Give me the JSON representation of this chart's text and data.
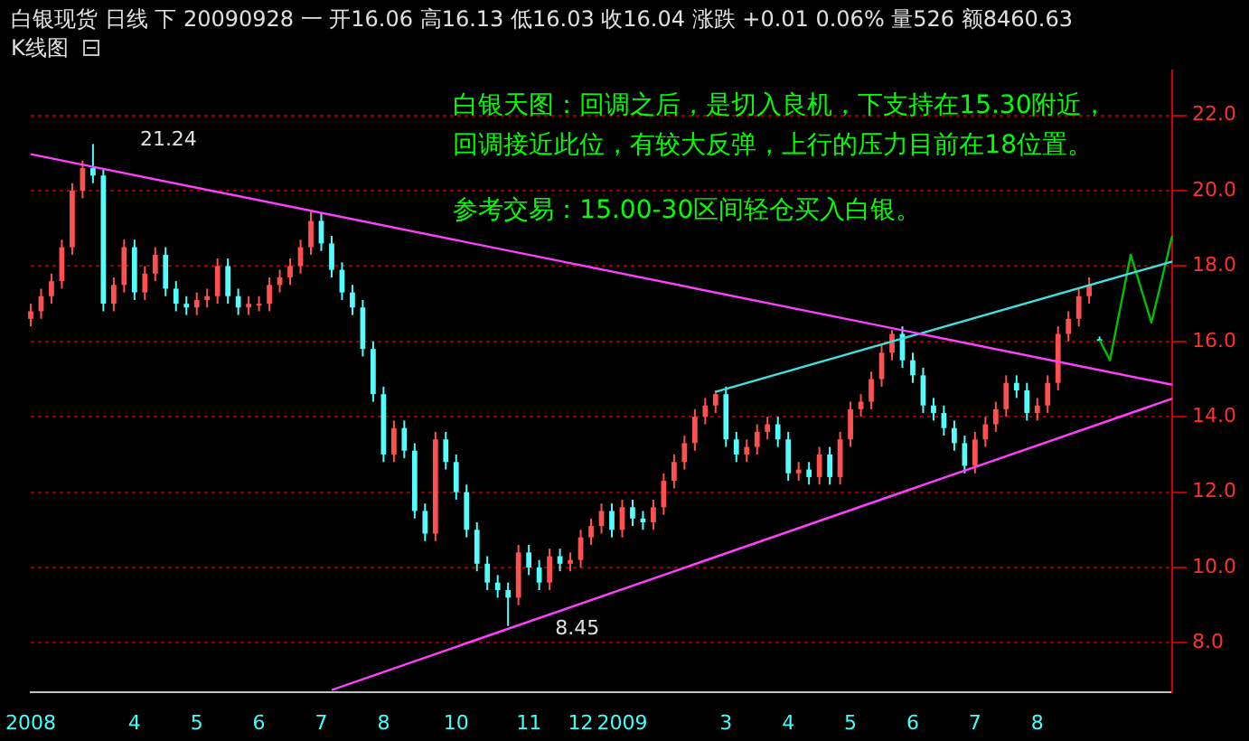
{
  "chart_data": {
    "type": "candlestick",
    "title": "白银现货 日线 下 20090928 一 开16.06 高16.13 低16.03 收16.04 涨跌 +0.01 0.06% 量526 额8460.63",
    "subtitle": "K线图",
    "annotations": [
      "白银天图：回调之后，是切入良机，下支持在15.30附近，",
      "回调接近此位，有较大反弹，上行的压力目前在18位置。",
      "参考交易：15.00-30区间轻仓买入白银。",
      "21.24",
      "8.45"
    ],
    "categories": [
      "2008",
      null,
      null,
      null,
      null,
      null,
      null,
      null,
      null,
      null,
      "4",
      null,
      null,
      null,
      null,
      null,
      "5",
      null,
      null,
      null,
      null,
      null,
      "6",
      null,
      null,
      null,
      null,
      null,
      "7",
      null,
      null,
      null,
      null,
      null,
      "8",
      null,
      null,
      null,
      null,
      null,
      null,
      "10",
      null,
      null,
      null,
      null,
      null,
      null,
      "11",
      null,
      null,
      null,
      null,
      "12",
      null,
      null,
      null,
      "2009",
      null,
      null,
      null,
      null,
      null,
      null,
      null,
      null,
      null,
      "3",
      null,
      null,
      null,
      null,
      null,
      "4",
      null,
      null,
      null,
      null,
      null,
      "5",
      null,
      null,
      null,
      null,
      null,
      "6",
      null,
      null,
      null,
      null,
      null,
      "7",
      null,
      null,
      null,
      null,
      null,
      "8",
      null,
      null,
      null,
      null,
      null,
      null,
      null,
      null,
      null,
      null,
      null,
      null,
      null
    ],
    "ohlc": [
      [
        16.6,
        17.0,
        16.4,
        16.8
      ],
      [
        16.8,
        17.4,
        16.6,
        17.2
      ],
      [
        17.2,
        17.8,
        17.0,
        17.6
      ],
      [
        17.6,
        18.7,
        17.4,
        18.5
      ],
      [
        18.5,
        20.2,
        18.3,
        20.0
      ],
      [
        20.0,
        20.8,
        19.8,
        20.6
      ],
      [
        20.6,
        21.24,
        20.2,
        20.4
      ],
      [
        20.4,
        20.6,
        16.8,
        17.0
      ],
      [
        17.0,
        17.7,
        16.8,
        17.5
      ],
      [
        17.5,
        18.7,
        17.3,
        18.5
      ],
      [
        18.5,
        18.7,
        17.1,
        17.3
      ],
      [
        17.3,
        18.0,
        17.1,
        17.8
      ],
      [
        17.8,
        18.5,
        17.6,
        18.3
      ],
      [
        18.3,
        18.5,
        17.2,
        17.4
      ],
      [
        17.4,
        17.6,
        16.8,
        17.0
      ],
      [
        17.0,
        17.2,
        16.7,
        16.9
      ],
      [
        16.9,
        17.3,
        16.7,
        17.1
      ],
      [
        17.1,
        17.4,
        16.9,
        17.2
      ],
      [
        17.2,
        18.2,
        17.0,
        18.0
      ],
      [
        18.0,
        18.2,
        17.0,
        17.2
      ],
      [
        17.2,
        17.4,
        16.7,
        16.9
      ],
      [
        16.9,
        17.2,
        16.7,
        17.0
      ],
      [
        17.0,
        17.2,
        16.8,
        17.0
      ],
      [
        17.0,
        17.7,
        16.8,
        17.5
      ],
      [
        17.5,
        17.9,
        17.3,
        17.7
      ],
      [
        17.7,
        18.2,
        17.5,
        18.0
      ],
      [
        18.0,
        18.7,
        17.8,
        18.5
      ],
      [
        18.5,
        19.5,
        18.3,
        19.2
      ],
      [
        19.2,
        19.4,
        18.4,
        18.6
      ],
      [
        18.6,
        18.8,
        17.7,
        17.9
      ],
      [
        17.9,
        18.1,
        17.1,
        17.3
      ],
      [
        17.3,
        17.5,
        16.7,
        16.9
      ],
      [
        16.9,
        17.1,
        15.6,
        15.8
      ],
      [
        15.8,
        16.0,
        14.4,
        14.6
      ],
      [
        14.6,
        14.8,
        12.8,
        13.0
      ],
      [
        13.0,
        13.9,
        12.8,
        13.7
      ],
      [
        13.7,
        13.9,
        12.9,
        13.1
      ],
      [
        13.1,
        13.3,
        11.3,
        11.5
      ],
      [
        11.5,
        11.7,
        10.7,
        10.9
      ],
      [
        10.9,
        13.6,
        10.7,
        13.4
      ],
      [
        13.4,
        13.6,
        12.6,
        12.8
      ],
      [
        12.8,
        13.0,
        11.8,
        12.0
      ],
      [
        12.0,
        12.2,
        10.8,
        11.0
      ],
      [
        11.0,
        11.2,
        9.9,
        10.1
      ],
      [
        10.1,
        10.3,
        9.4,
        9.6
      ],
      [
        9.6,
        9.8,
        9.2,
        9.4
      ],
      [
        9.4,
        9.6,
        8.45,
        9.2
      ],
      [
        9.2,
        10.6,
        9.0,
        10.4
      ],
      [
        10.4,
        10.6,
        9.8,
        10.0
      ],
      [
        10.0,
        10.2,
        9.4,
        9.6
      ],
      [
        9.6,
        10.5,
        9.4,
        10.3
      ],
      [
        10.3,
        10.5,
        9.9,
        10.1
      ],
      [
        10.1,
        10.4,
        9.9,
        10.2
      ],
      [
        10.2,
        11.0,
        10.0,
        10.8
      ],
      [
        10.8,
        11.3,
        10.6,
        11.1
      ],
      [
        11.1,
        11.7,
        10.9,
        11.5
      ],
      [
        11.5,
        11.7,
        10.8,
        11.0
      ],
      [
        11.0,
        11.8,
        10.8,
        11.6
      ],
      [
        11.6,
        11.8,
        11.1,
        11.3
      ],
      [
        11.3,
        11.5,
        11.0,
        11.2
      ],
      [
        11.2,
        11.8,
        11.0,
        11.6
      ],
      [
        11.6,
        12.5,
        11.4,
        12.3
      ],
      [
        12.3,
        13.0,
        12.1,
        12.8
      ],
      [
        12.8,
        13.5,
        12.6,
        13.3
      ],
      [
        13.3,
        14.2,
        13.1,
        14.0
      ],
      [
        14.0,
        14.5,
        13.8,
        14.3
      ],
      [
        14.3,
        14.7,
        14.1,
        14.6
      ],
      [
        14.6,
        14.8,
        13.2,
        13.4
      ],
      [
        13.4,
        13.6,
        12.8,
        13.0
      ],
      [
        13.0,
        13.4,
        12.8,
        13.2
      ],
      [
        13.2,
        13.8,
        13.0,
        13.6
      ],
      [
        13.6,
        14.0,
        13.4,
        13.8
      ],
      [
        13.8,
        14.0,
        13.2,
        13.4
      ],
      [
        13.4,
        13.6,
        12.3,
        12.5
      ],
      [
        12.5,
        12.8,
        12.3,
        12.6
      ],
      [
        12.6,
        12.8,
        12.2,
        12.4
      ],
      [
        12.4,
        13.2,
        12.2,
        13.0
      ],
      [
        13.0,
        13.2,
        12.2,
        12.4
      ],
      [
        12.4,
        13.6,
        12.2,
        13.4
      ],
      [
        13.4,
        14.4,
        13.2,
        14.2
      ],
      [
        14.2,
        14.6,
        14.0,
        14.4
      ],
      [
        14.4,
        15.2,
        14.2,
        15.0
      ],
      [
        15.0,
        15.9,
        14.8,
        15.7
      ],
      [
        15.7,
        16.3,
        15.5,
        16.2
      ],
      [
        16.2,
        16.4,
        15.3,
        15.5
      ],
      [
        15.5,
        15.7,
        14.9,
        15.1
      ],
      [
        15.1,
        15.3,
        14.1,
        14.3
      ],
      [
        14.3,
        14.5,
        13.9,
        14.1
      ],
      [
        14.1,
        14.3,
        13.5,
        13.7
      ],
      [
        13.7,
        13.9,
        13.1,
        13.3
      ],
      [
        13.3,
        13.5,
        12.5,
        12.7
      ],
      [
        12.7,
        13.6,
        12.5,
        13.4
      ],
      [
        13.4,
        14.0,
        13.2,
        13.8
      ],
      [
        13.8,
        14.4,
        13.6,
        14.2
      ],
      [
        14.2,
        15.1,
        14.0,
        14.9
      ],
      [
        14.9,
        15.1,
        14.5,
        14.7
      ],
      [
        14.7,
        14.9,
        13.9,
        14.1
      ],
      [
        14.1,
        14.5,
        13.9,
        14.3
      ],
      [
        14.3,
        15.1,
        14.1,
        14.9
      ],
      [
        14.9,
        16.4,
        14.7,
        16.2
      ],
      [
        16.2,
        16.8,
        16.0,
        16.6
      ],
      [
        16.6,
        17.4,
        16.4,
        17.2
      ],
      [
        17.2,
        17.7,
        17.0,
        17.5
      ],
      [
        16.06,
        16.13,
        16.03,
        16.04
      ],
      null,
      null,
      null,
      null,
      null,
      null,
      null
    ],
    "series": [
      {
        "type": "line",
        "color": "#ff40ff",
        "values": [
          20.97,
          null,
          null,
          null,
          null,
          null,
          null,
          null,
          null,
          null,
          null,
          null,
          null,
          null,
          null,
          null,
          null,
          null,
          null,
          null,
          null,
          null,
          null,
          null,
          null,
          null,
          null,
          null,
          null,
          null,
          null,
          null,
          null,
          null,
          null,
          null,
          null,
          null,
          null,
          null,
          null,
          null,
          null,
          null,
          null,
          null,
          null,
          null,
          null,
          null,
          null,
          null,
          null,
          null,
          null,
          null,
          null,
          null,
          null,
          null,
          null,
          null,
          null,
          null,
          null,
          null,
          null,
          null,
          null,
          null,
          null,
          null,
          null,
          null,
          null,
          null,
          null,
          null,
          null,
          null,
          null,
          null,
          null,
          null,
          null,
          null,
          null,
          null,
          null,
          null,
          null,
          null,
          null,
          null,
          null,
          null,
          null,
          null,
          null,
          null,
          null,
          null,
          null,
          null,
          null,
          null,
          null,
          null,
          null,
          null,
          14.85
        ]
      },
      {
        "type": "line",
        "color": "#ff40ff",
        "values": [
          null,
          null,
          null,
          null,
          null,
          null,
          null,
          null,
          null,
          null,
          null,
          null,
          null,
          null,
          null,
          null,
          null,
          null,
          null,
          null,
          null,
          null,
          null,
          null,
          null,
          null,
          null,
          null,
          null,
          6.75,
          null,
          null,
          null,
          null,
          null,
          null,
          null,
          null,
          null,
          null,
          null,
          null,
          null,
          null,
          null,
          null,
          null,
          null,
          null,
          null,
          null,
          null,
          null,
          null,
          null,
          null,
          null,
          null,
          null,
          null,
          null,
          null,
          null,
          null,
          null,
          null,
          null,
          null,
          null,
          null,
          null,
          null,
          null,
          null,
          null,
          null,
          null,
          null,
          null,
          null,
          null,
          null,
          null,
          null,
          null,
          null,
          null,
          null,
          null,
          null,
          null,
          null,
          null,
          null,
          null,
          null,
          null,
          null,
          null,
          null,
          null,
          null,
          null,
          null,
          null,
          null,
          null,
          null,
          null,
          null,
          14.48
        ]
      },
      {
        "type": "line",
        "color": "#40e0e0",
        "values": [
          null,
          null,
          null,
          null,
          null,
          null,
          null,
          null,
          null,
          null,
          null,
          null,
          null,
          null,
          null,
          null,
          null,
          null,
          null,
          null,
          null,
          null,
          null,
          null,
          null,
          null,
          null,
          null,
          null,
          null,
          null,
          null,
          null,
          null,
          null,
          null,
          null,
          null,
          null,
          null,
          null,
          null,
          null,
          null,
          null,
          null,
          null,
          null,
          null,
          null,
          null,
          null,
          null,
          null,
          null,
          null,
          null,
          null,
          null,
          null,
          null,
          null,
          null,
          null,
          null,
          null,
          14.66,
          null,
          null,
          null,
          null,
          null,
          null,
          null,
          null,
          null,
          null,
          null,
          null,
          null,
          null,
          null,
          null,
          null,
          null,
          null,
          null,
          null,
          null,
          null,
          null,
          null,
          null,
          null,
          null,
          null,
          null,
          null,
          null,
          null,
          null,
          null,
          null,
          null,
          null,
          null,
          null,
          null,
          null,
          null,
          18.12
        ]
      },
      {
        "type": "line",
        "color": "#00c000",
        "values": [
          null,
          null,
          null,
          null,
          null,
          null,
          null,
          null,
          null,
          null,
          null,
          null,
          null,
          null,
          null,
          null,
          null,
          null,
          null,
          null,
          null,
          null,
          null,
          null,
          null,
          null,
          null,
          null,
          null,
          null,
          null,
          null,
          null,
          null,
          null,
          null,
          null,
          null,
          null,
          null,
          null,
          null,
          null,
          null,
          null,
          null,
          null,
          null,
          null,
          null,
          null,
          null,
          null,
          null,
          null,
          null,
          null,
          null,
          null,
          null,
          null,
          null,
          null,
          null,
          null,
          null,
          null,
          null,
          null,
          null,
          null,
          null,
          null,
          null,
          null,
          null,
          null,
          null,
          null,
          null,
          null,
          null,
          null,
          null,
          null,
          null,
          null,
          null,
          null,
          null,
          null,
          null,
          null,
          null,
          null,
          null,
          null,
          null,
          null,
          null,
          null,
          null,
          null,
          16.04,
          15.5,
          null,
          18.3,
          null,
          16.5,
          null,
          18.8
        ]
      }
    ],
    "ylim": [
      6.7,
      23.2
    ],
    "yticks": [
      {
        "value": 8,
        "label": "8.0"
      },
      {
        "value": 10,
        "label": "10.0"
      },
      {
        "value": 12,
        "label": "12.0"
      },
      {
        "value": 14,
        "label": "14.0"
      },
      {
        "value": 16,
        "label": "16.0"
      },
      {
        "value": 18,
        "label": "18.0"
      },
      {
        "value": 20,
        "label": "20.0"
      },
      {
        "value": 22,
        "label": "22.0"
      }
    ],
    "grid": "y",
    "legend": false,
    "marker": "none"
  }
}
